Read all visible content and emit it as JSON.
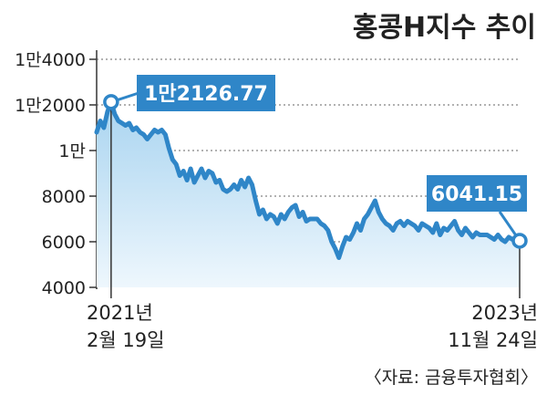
{
  "title": "홍콩H지수 추이",
  "source": "〈자료: 금융투자협회〉",
  "colors": {
    "line": "#2f86c8",
    "fill_top": "#a9d4f0",
    "fill_bottom": "#eef7fd",
    "label_bg": "#2f86c8",
    "grid": "#666666"
  },
  "chart_data": {
    "type": "area",
    "title": "홍콩H지수 추이",
    "ylim": [
      4000,
      14000
    ],
    "yticks": [
      4000,
      6000,
      8000,
      10000,
      12000,
      14000
    ],
    "ytick_labels": [
      "4000",
      "6000",
      "8000",
      "1만",
      "1만2000",
      "1만4000"
    ],
    "grid": "horizontal dashed",
    "x_start_label": [
      "2021년",
      "2월 19일"
    ],
    "x_end_label": [
      "2023년",
      "11월 24일"
    ],
    "peak": {
      "index": 4,
      "value": 12126.77,
      "label": "1만2126.77"
    },
    "last": {
      "index": 117,
      "value": 6041.15,
      "label": "6041.15"
    },
    "values": [
      10800,
      11300,
      11000,
      11700,
      12126.77,
      11600,
      11300,
      11200,
      11100,
      11200,
      10900,
      11000,
      10800,
      10700,
      10500,
      10700,
      10900,
      10800,
      10900,
      10700,
      10100,
      9600,
      9400,
      8900,
      9100,
      8700,
      9200,
      8600,
      8900,
      9200,
      8800,
      9100,
      9000,
      8600,
      8700,
      8300,
      8200,
      8300,
      8500,
      8300,
      8700,
      8400,
      8800,
      8500,
      7800,
      7200,
      7400,
      7000,
      7200,
      7100,
      6800,
      7200,
      7000,
      7300,
      7500,
      7600,
      7100,
      7300,
      6900,
      7000,
      7000,
      7000,
      6800,
      6700,
      6500,
      6000,
      5700,
      5300,
      5800,
      6200,
      6100,
      6400,
      6800,
      6500,
      7000,
      7200,
      7500,
      7800,
      7300,
      7000,
      6800,
      6700,
      6500,
      6800,
      6900,
      6700,
      6900,
      6800,
      6700,
      6500,
      6800,
      6700,
      6600,
      6400,
      6800,
      6300,
      6600,
      6500,
      6700,
      6900,
      6500,
      6300,
      6600,
      6400,
      6200,
      6400,
      6300,
      6300,
      6300,
      6200,
      6100,
      6300,
      6100,
      6000,
      6200,
      6100,
      6200,
      6041.15
    ]
  }
}
